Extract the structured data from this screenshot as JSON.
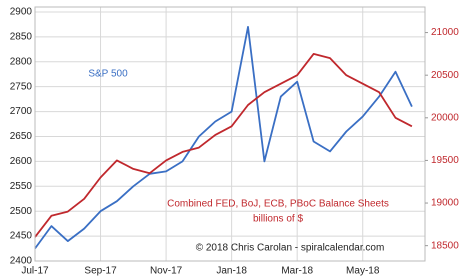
{
  "chart_data": {
    "type": "line",
    "annotations": [
      "S&P 500",
      "Combined FED, BoJ, ECB, PBoC Balance Sheets",
      "billions of $",
      "© 2018 Chris Carolan - spiralcalendar.com"
    ],
    "x": [
      0,
      0.5,
      1,
      1.5,
      2,
      2.5,
      3,
      3.5,
      4,
      4.5,
      5,
      5.5,
      6,
      6.5,
      7,
      7.5,
      8,
      8.5,
      9,
      9.5,
      10,
      10.5,
      11,
      11.5
    ],
    "series": [
      {
        "name": "S&P 500",
        "color": "#3a6fc4",
        "values": [
          2425,
          2470,
          2440,
          2465,
          2500,
          2520,
          2550,
          2575,
          2580,
          2600,
          2650,
          2680,
          2700,
          2870,
          2600,
          2730,
          2760,
          2640,
          2620,
          2660,
          2690,
          2730,
          2780,
          2710
        ]
      },
      {
        "name": "Combined FED, BoJ, ECB, PBoC Balance Sheets",
        "color": "#c0282d",
        "axis": "y2",
        "values": [
          18600,
          18850,
          18900,
          19050,
          19300,
          19500,
          19400,
          19350,
          19500,
          19600,
          19650,
          19800,
          19900,
          20150,
          20300,
          20400,
          20500,
          20750,
          20700,
          20500,
          20400,
          20300,
          20000,
          19900
        ]
      }
    ],
    "xlim": [
      0,
      11.9
    ],
    "xticks": [
      {
        "value": 0,
        "label": "Jul-17"
      },
      {
        "value": 2,
        "label": "Sep-17"
      },
      {
        "value": 4,
        "label": "Nov-17"
      },
      {
        "value": 6,
        "label": "Jan-18"
      },
      {
        "value": 8,
        "label": "Mar-18"
      },
      {
        "value": 10,
        "label": "May-18"
      }
    ],
    "ylim": [
      2400,
      2910
    ],
    "yticks": [
      2400,
      2450,
      2500,
      2550,
      2600,
      2650,
      2700,
      2750,
      2800,
      2850,
      2900
    ],
    "y2lim": [
      18320,
      21300
    ],
    "y2ticks": [
      18500,
      19000,
      19500,
      20000,
      20500,
      21000
    ],
    "grid": true
  }
}
